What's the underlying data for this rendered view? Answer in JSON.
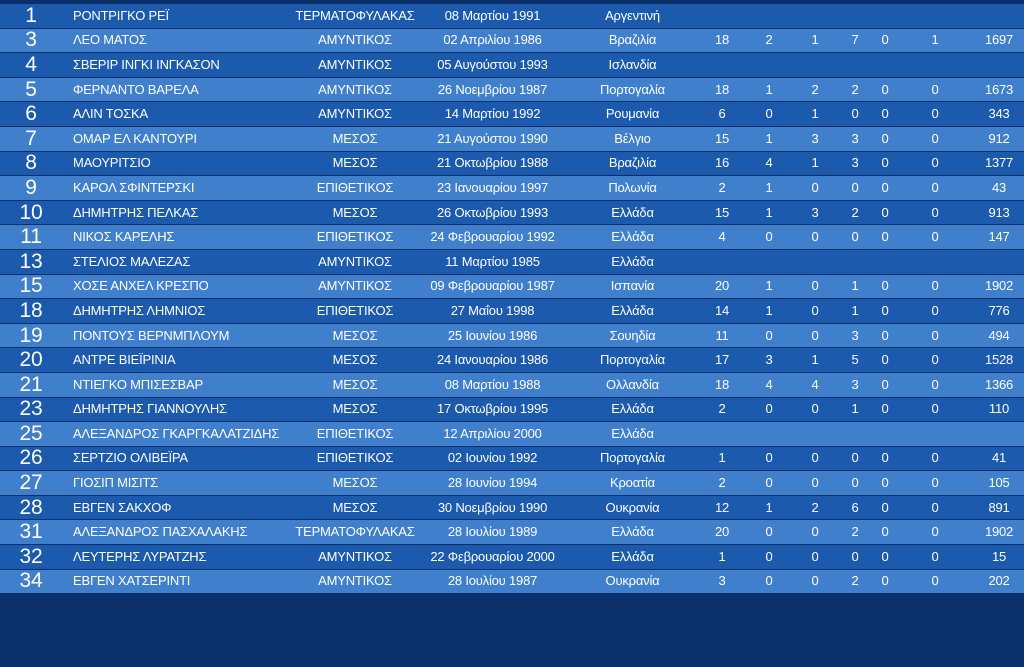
{
  "table": {
    "rows": [
      {
        "number": 1,
        "name": "ΡΟΝΤΡΙΓΚΟ ΡΕΪ",
        "position": "ΤΕΡΜΑΤΟΦΥΛΑΚΑΣ",
        "birth_date": "08 Μαρτίου 1991",
        "country": "Αργεντινή",
        "stats": []
      },
      {
        "number": 3,
        "name": "ΛΕΟ ΜΑΤΟΣ",
        "position": "ΑΜΥΝΤΙΚΟΣ",
        "birth_date": "02 Απριλίου 1986",
        "country": "Βραζιλία",
        "stats": [
          18,
          2,
          1,
          7,
          0,
          1,
          1697
        ]
      },
      {
        "number": 4,
        "name": "ΣΒΕΡΙΡ ΙΝΓΚΙ ΙΝΓΚΑΣΟΝ",
        "position": "ΑΜΥΝΤΙΚΟΣ",
        "birth_date": "05 Αυγούστου 1993",
        "country": "Ισλανδία",
        "stats": []
      },
      {
        "number": 5,
        "name": "ΦΕΡΝΑΝΤΟ ΒΑΡΕΛΑ",
        "position": "ΑΜΥΝΤΙΚΟΣ",
        "birth_date": "26 Νοεμβρίου 1987",
        "country": "Πορτογαλία",
        "stats": [
          18,
          1,
          2,
          2,
          0,
          0,
          1673
        ]
      },
      {
        "number": 6,
        "name": "ΑΛΙΝ ΤΟΣΚΑ",
        "position": "ΑΜΥΝΤΙΚΟΣ",
        "birth_date": "14 Μαρτίου 1992",
        "country": "Ρουμανία",
        "stats": [
          6,
          0,
          1,
          0,
          0,
          0,
          343
        ]
      },
      {
        "number": 7,
        "name": "ΟΜΑΡ ΕΛ ΚΑΝΤΟΥΡΙ",
        "position": "ΜΕΣΟΣ",
        "birth_date": "21 Αυγούστου 1990",
        "country": "Βέλγιο",
        "stats": [
          15,
          1,
          3,
          3,
          0,
          0,
          912
        ]
      },
      {
        "number": 8,
        "name": "ΜΑΟΥΡΙΤΣΙΟ",
        "position": "ΜΕΣΟΣ",
        "birth_date": "21 Οκτωβρίου 1988",
        "country": "Βραζιλία",
        "stats": [
          16,
          4,
          1,
          3,
          0,
          0,
          1377
        ]
      },
      {
        "number": 9,
        "name": "ΚΑΡΟΛ ΣΦΙΝΤΕΡΣΚΙ",
        "position": "ΕΠΙΘΕΤΙΚΟΣ",
        "birth_date": "23 Ιανουαρίου 1997",
        "country": "Πολωνία",
        "stats": [
          2,
          1,
          0,
          0,
          0,
          0,
          43
        ]
      },
      {
        "number": 10,
        "name": "ΔΗΜΗΤΡΗΣ ΠΕΛΚΑΣ",
        "position": "ΜΕΣΟΣ",
        "birth_date": "26 Οκτωβρίου 1993",
        "country": "Ελλάδα",
        "stats": [
          15,
          1,
          3,
          2,
          0,
          0,
          913
        ]
      },
      {
        "number": 11,
        "name": "ΝΙΚΟΣ ΚΑΡΕΛΗΣ",
        "position": "ΕΠΙΘΕΤΙΚΟΣ",
        "birth_date": "24 Φεβρουαρίου 1992",
        "country": "Ελλάδα",
        "stats": [
          4,
          0,
          0,
          0,
          0,
          0,
          147
        ]
      },
      {
        "number": 13,
        "name": "ΣΤΕΛΙΟΣ ΜΑΛΕΖΑΣ",
        "position": "ΑΜΥΝΤΙΚΟΣ",
        "birth_date": "11 Μαρτίου 1985",
        "country": "Ελλάδα",
        "stats": []
      },
      {
        "number": 15,
        "name": "ΧΟΣΕ ΑΝΧΕΛ ΚΡΕΣΠΟ",
        "position": "ΑΜΥΝΤΙΚΟΣ",
        "birth_date": "09 Φεβρουαρίου 1987",
        "country": "Ισπανία",
        "stats": [
          20,
          1,
          0,
          1,
          0,
          0,
          1902
        ]
      },
      {
        "number": 18,
        "name": "ΔΗΜΗΤΡΗΣ ΛΗΜΝΙΟΣ",
        "position": "ΕΠΙΘΕΤΙΚΟΣ",
        "birth_date": "27 Μαΐου 1998",
        "country": "Ελλάδα",
        "stats": [
          14,
          1,
          0,
          1,
          0,
          0,
          776
        ]
      },
      {
        "number": 19,
        "name": "ΠΟΝΤΟΥΣ ΒΕΡΝΜΠΛΟΥΜ",
        "position": "ΜΕΣΟΣ",
        "birth_date": "25 Ιουνίου 1986",
        "country": "Σουηδία",
        "stats": [
          11,
          0,
          0,
          3,
          0,
          0,
          494
        ]
      },
      {
        "number": 20,
        "name": "ΑΝΤΡΕ ΒΙΕΪΡΙΝΙΑ",
        "position": "ΜΕΣΟΣ",
        "birth_date": "24 Ιανουαρίου 1986",
        "country": "Πορτογαλία",
        "stats": [
          17,
          3,
          1,
          5,
          0,
          0,
          1528
        ]
      },
      {
        "number": 21,
        "name": "ΝΤΙΕΓΚΟ ΜΠΙΣΕΣΒΑΡ",
        "position": "ΜΕΣΟΣ",
        "birth_date": "08 Μαρτίου 1988",
        "country": "Ολλανδία",
        "stats": [
          18,
          4,
          4,
          3,
          0,
          0,
          1366
        ]
      },
      {
        "number": 23,
        "name": "ΔΗΜΗΤΡΗΣ ΓΙΑΝΝΟΥΛΗΣ",
        "position": "ΜΕΣΟΣ",
        "birth_date": "17 Οκτωβρίου 1995",
        "country": "Ελλάδα",
        "stats": [
          2,
          0,
          0,
          1,
          0,
          0,
          110
        ]
      },
      {
        "number": 25,
        "name": "ΑΛΕΞΑΝΔΡΟΣ ΓΚΑΡΓΚΑΛΑΤΖΙΔΗΣ",
        "position": "ΕΠΙΘΕΤΙΚΟΣ",
        "birth_date": "12 Απριλίου 2000",
        "country": "Ελλάδα",
        "stats": []
      },
      {
        "number": 26,
        "name": "ΣΕΡΤΖΙΟ ΟΛΙΒΕΪΡΑ",
        "position": "ΕΠΙΘΕΤΙΚΟΣ",
        "birth_date": "02 Ιουνίου 1992",
        "country": "Πορτογαλία",
        "stats": [
          1,
          0,
          0,
          0,
          0,
          0,
          41
        ]
      },
      {
        "number": 27,
        "name": "ΓΙΟΣΙΠ ΜΙΣΙΤΣ",
        "position": "ΜΕΣΟΣ",
        "birth_date": "28 Ιουνίου 1994",
        "country": "Κροατία",
        "stats": [
          2,
          0,
          0,
          0,
          0,
          0,
          105
        ]
      },
      {
        "number": 28,
        "name": "ΕΒΓΕΝ ΣΑΚΧΟΦ",
        "position": "ΜΕΣΟΣ",
        "birth_date": "30 Νοεμβρίου 1990",
        "country": "Ουκρανία",
        "stats": [
          12,
          1,
          2,
          6,
          0,
          0,
          891
        ]
      },
      {
        "number": 31,
        "name": "ΑΛΕΞΑΝΔΡΟΣ ΠΑΣΧΑΛΑΚΗΣ",
        "position": "ΤΕΡΜΑΤΟΦΥΛΑΚΑΣ",
        "birth_date": "28 Ιουλίου 1989",
        "country": "Ελλάδα",
        "stats": [
          20,
          0,
          0,
          2,
          0,
          0,
          1902
        ]
      },
      {
        "number": 32,
        "name": "ΛΕΥΤΕΡΗΣ ΛΥΡΑΤΖΗΣ",
        "position": "ΑΜΥΝΤΙΚΟΣ",
        "birth_date": "22 Φεβρουαρίου 2000",
        "country": "Ελλάδα",
        "stats": [
          1,
          0,
          0,
          0,
          0,
          0,
          15
        ]
      },
      {
        "number": 34,
        "name": "ΕΒΓΕΝ ΧΑΤΣΕΡΙΝΤΙ",
        "position": "ΑΜΥΝΤΙΚΟΣ",
        "birth_date": "28 Ιουλίου 1987",
        "country": "Ουκρανία",
        "stats": [
          3,
          0,
          0,
          2,
          0,
          0,
          202
        ]
      }
    ]
  }
}
